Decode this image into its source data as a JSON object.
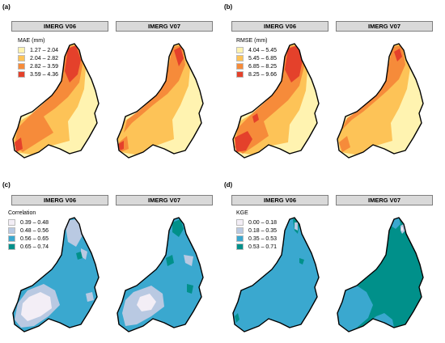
{
  "panels": [
    {
      "letter": "(a)",
      "tiles": [
        "IMERG V06",
        "IMERG V07"
      ],
      "legend_title": "MAE (mm)",
      "classes": [
        {
          "label": "1.27 – 2.04",
          "color": "#fff3b0"
        },
        {
          "label": "2.04 – 2.82",
          "color": "#fdc357"
        },
        {
          "label": "2.82 – 3.59",
          "color": "#f68b3a"
        },
        {
          "label": "3.59 – 4.36",
          "color": "#e4412b"
        }
      ]
    },
    {
      "letter": "(b)",
      "tiles": [
        "IMERG V06",
        "IMERG V07"
      ],
      "legend_title": "RMSE (mm)",
      "classes": [
        {
          "label": "4.04 – 5.45",
          "color": "#fff3b0"
        },
        {
          "label": "5.45 – 6.85",
          "color": "#fdc357"
        },
        {
          "label": "6.85 – 8.25",
          "color": "#f68b3a"
        },
        {
          "label": "8.25 – 9.66",
          "color": "#e4412b"
        }
      ]
    },
    {
      "letter": "(c)",
      "tiles": [
        "IMERG V06",
        "IMERG V07"
      ],
      "legend_title": "Correlation",
      "classes": [
        {
          "label": "0.39 – 0.48",
          "color": "#f3eef6"
        },
        {
          "label": "0.48 – 0.56",
          "color": "#b9c9e2"
        },
        {
          "label": "0.56 – 0.65",
          "color": "#3aa8cf"
        },
        {
          "label": "0.65 – 0.74",
          "color": "#00908a"
        }
      ]
    },
    {
      "letter": "(d)",
      "tiles": [
        "IMERG V06",
        "IMERG V07"
      ],
      "legend_title": "KGE",
      "classes": [
        {
          "label": "0.00 – 0.18",
          "color": "#f3eef6"
        },
        {
          "label": "0.18 – 0.35",
          "color": "#b9c9e2"
        },
        {
          "label": "0.35 – 0.53",
          "color": "#3aa8cf"
        },
        {
          "label": "0.53 – 0.71",
          "color": "#00908a"
        }
      ]
    }
  ]
}
